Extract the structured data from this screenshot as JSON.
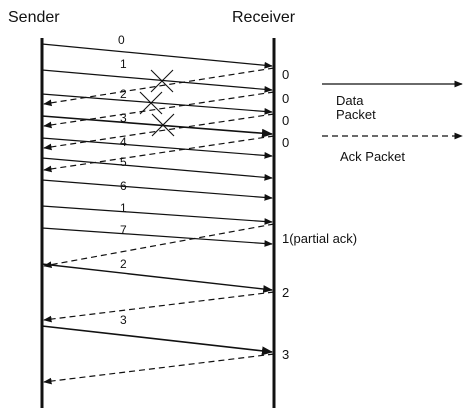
{
  "headers": {
    "sender": "Sender",
    "receiver": "Receiver"
  },
  "data_packets": [
    "0",
    "1",
    "2",
    "3",
    "4",
    "5",
    "6",
    "1",
    "7",
    "2",
    "3"
  ],
  "ack_labels": [
    "0",
    "0",
    "0",
    "0",
    "1(partial ack)",
    "2",
    "3"
  ],
  "legend": {
    "data_line1": "Data",
    "data_line2": "Packet",
    "ack": "Ack Packet"
  },
  "colors": {
    "ink": "#111111",
    "background": "#ffffff"
  }
}
